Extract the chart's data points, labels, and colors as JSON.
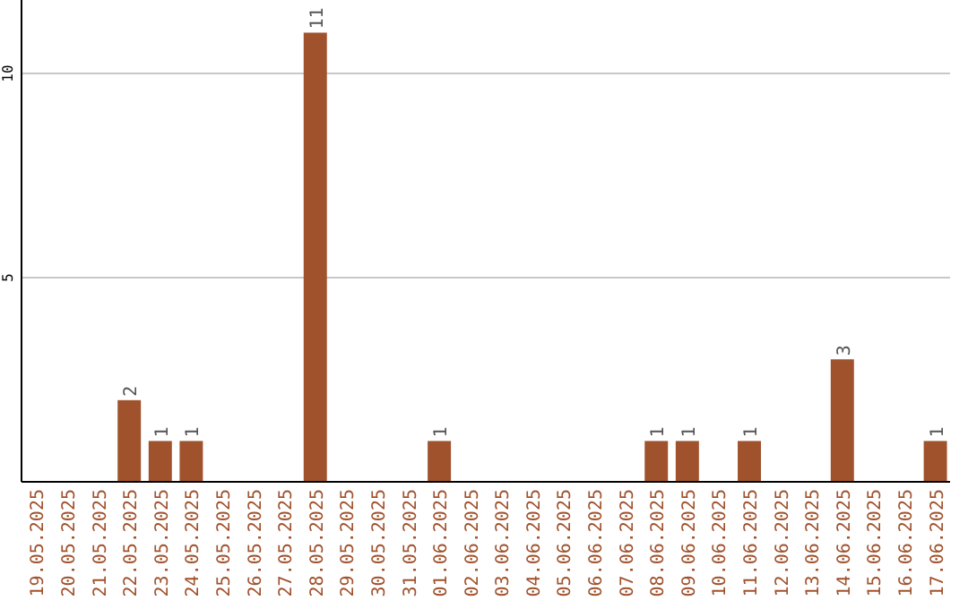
{
  "chart_data": {
    "type": "bar",
    "categories": [
      "19.05.2025",
      "20.05.2025",
      "21.05.2025",
      "22.05.2025",
      "23.05.2025",
      "24.05.2025",
      "25.05.2025",
      "26.05.2025",
      "27.05.2025",
      "28.05.2025",
      "29.05.2025",
      "30.05.2025",
      "31.05.2025",
      "01.06.2025",
      "02.06.2025",
      "03.06.2025",
      "04.06.2025",
      "05.06.2025",
      "06.06.2025",
      "07.06.2025",
      "08.06.2025",
      "09.06.2025",
      "10.06.2025",
      "11.06.2025",
      "12.06.2025",
      "13.06.2025",
      "14.06.2025",
      "15.06.2025",
      "16.06.2025",
      "17.06.2025"
    ],
    "values": [
      0,
      0,
      0,
      2,
      1,
      1,
      0,
      0,
      0,
      11,
      0,
      0,
      0,
      1,
      0,
      0,
      0,
      0,
      0,
      0,
      1,
      1,
      0,
      1,
      0,
      0,
      3,
      0,
      0,
      1
    ],
    "value_labels": [
      null,
      null,
      null,
      "2",
      "1",
      "1",
      null,
      null,
      null,
      "11",
      null,
      null,
      null,
      "1",
      null,
      null,
      null,
      null,
      null,
      null,
      "1",
      "1",
      null,
      "1",
      null,
      null,
      "3",
      null,
      null,
      "1"
    ],
    "color": "#a0522d",
    "ylim": [
      0,
      11.8
    ],
    "yticks": [
      5,
      10
    ],
    "grid": "y"
  }
}
